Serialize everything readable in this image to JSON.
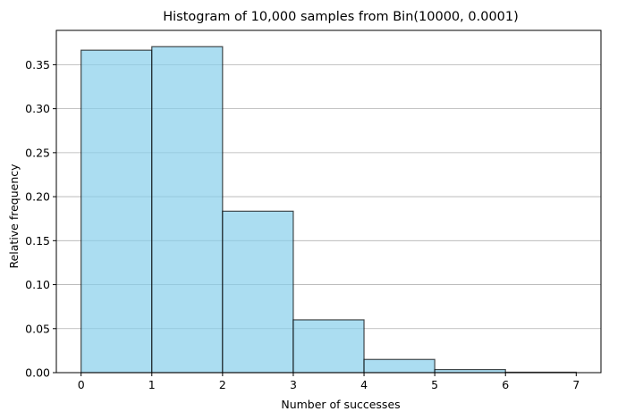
{
  "chart_data": {
    "type": "bar",
    "title": "Histogram of 10,000 samples from Bin(10000, 0.0001)",
    "xlabel": "Number of successes",
    "ylabel": "Relative frequency",
    "bins": [
      {
        "x0": 0,
        "x1": 1,
        "value": 0.3665
      },
      {
        "x0": 1,
        "x1": 2,
        "value": 0.3705
      },
      {
        "x0": 2,
        "x1": 3,
        "value": 0.1835
      },
      {
        "x0": 3,
        "x1": 4,
        "value": 0.06
      },
      {
        "x0": 4,
        "x1": 5,
        "value": 0.015
      },
      {
        "x0": 5,
        "x1": 6,
        "value": 0.0035
      },
      {
        "x0": 6,
        "x1": 7,
        "value": 0.0005
      }
    ],
    "xlim": [
      -0.35,
      7.35
    ],
    "ylim": [
      0,
      0.389
    ],
    "xticks": [
      0,
      1,
      2,
      3,
      4,
      5,
      6,
      7
    ],
    "xtick_labels": [
      "0",
      "1",
      "2",
      "3",
      "4",
      "5",
      "6",
      "7"
    ],
    "yticks": [
      0.0,
      0.05,
      0.1,
      0.15,
      0.2,
      0.25,
      0.3,
      0.35
    ],
    "ytick_labels": [
      "0.00",
      "0.05",
      "0.10",
      "0.15",
      "0.20",
      "0.25",
      "0.30",
      "0.35"
    ],
    "grid": "y",
    "bar_color": "#87CEEB",
    "bar_edge_color": "#000000"
  }
}
